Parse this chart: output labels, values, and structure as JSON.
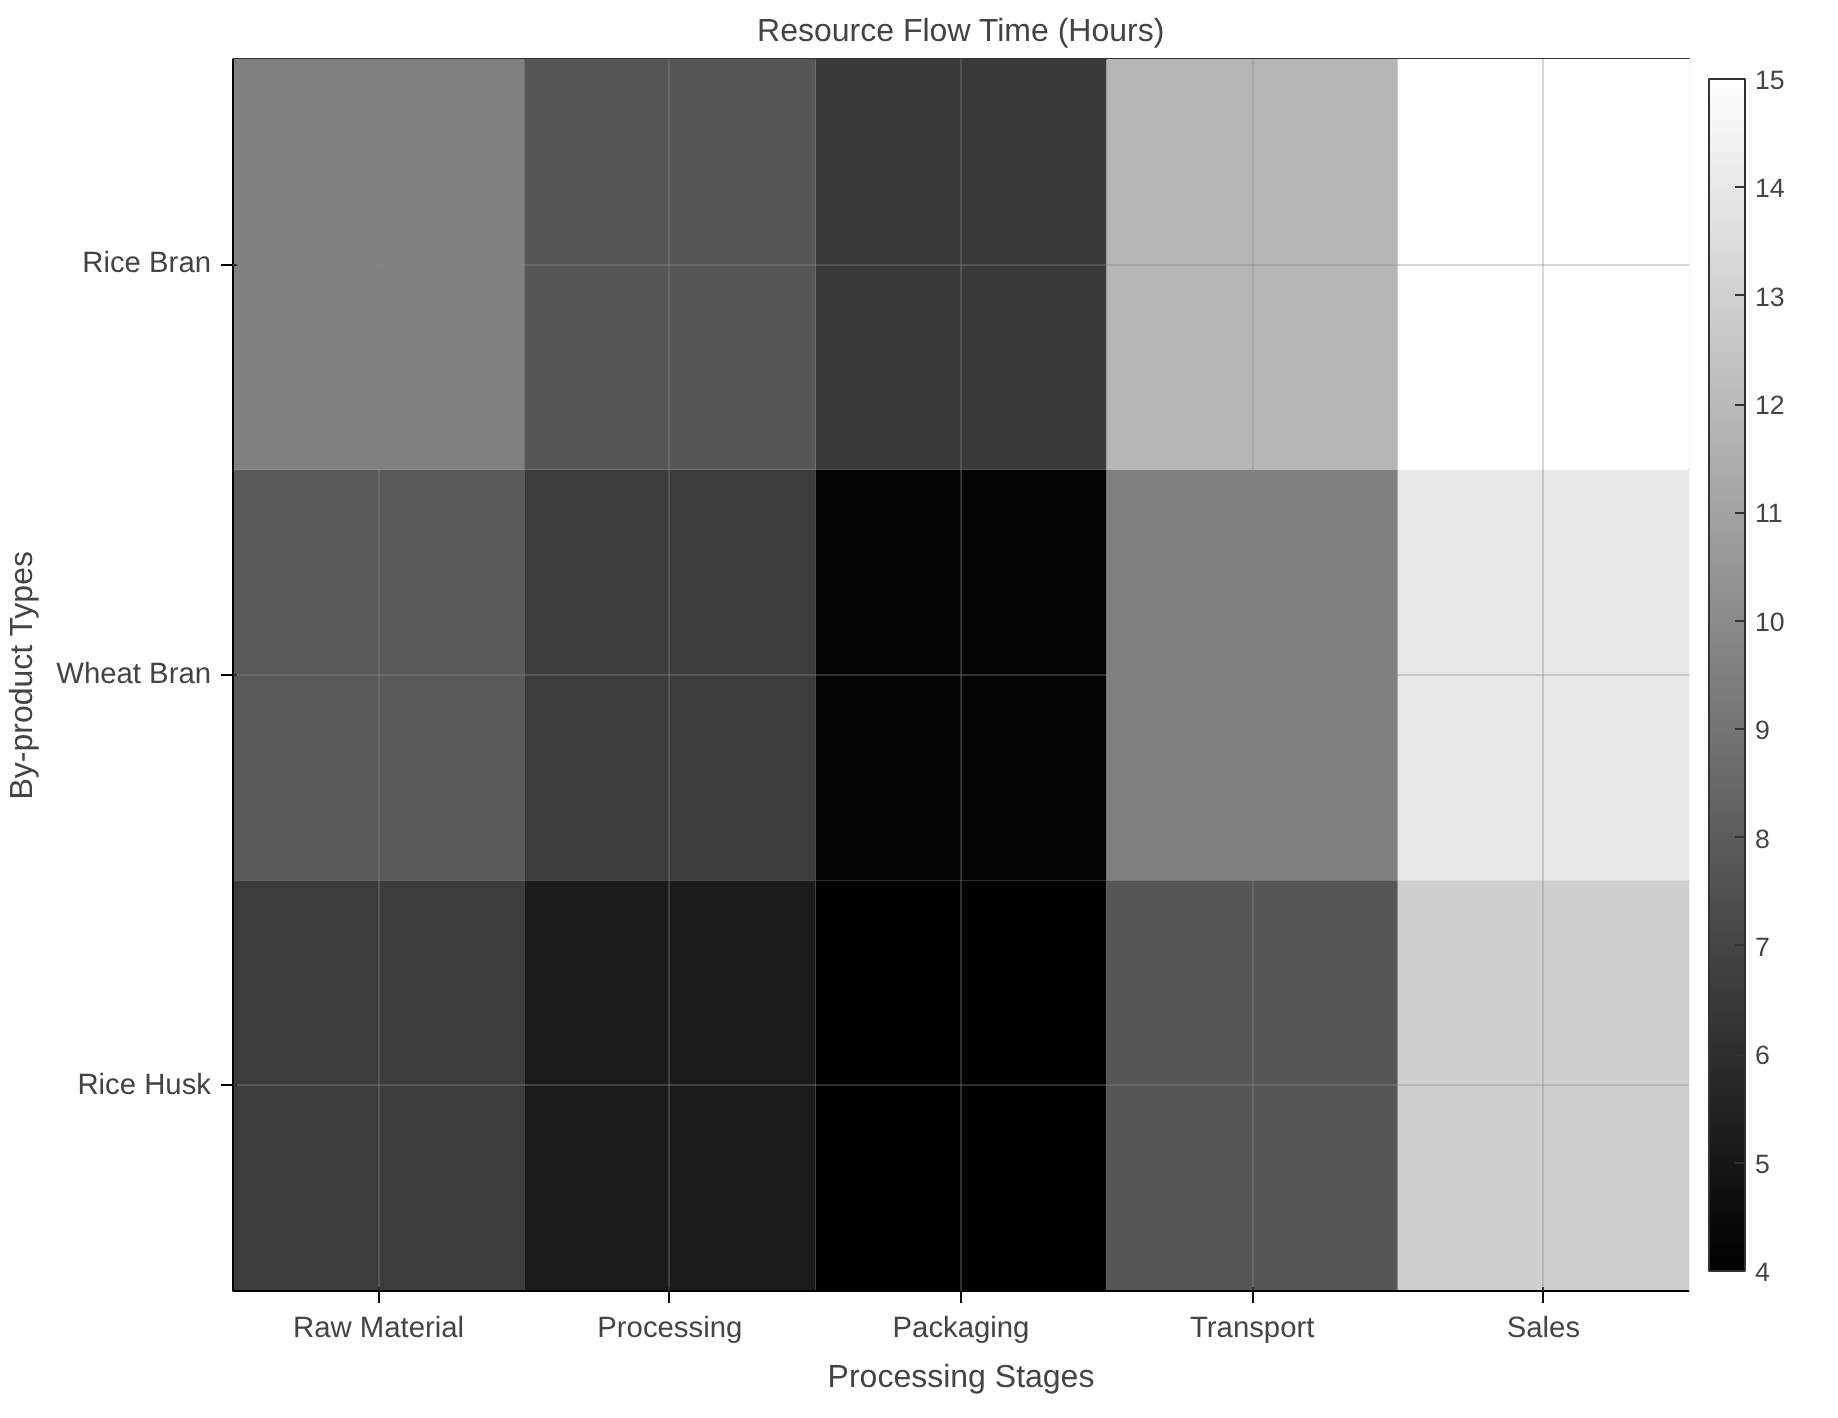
{
  "chart_data": {
    "type": "heatmap",
    "title": "Resource Flow Time (Hours)",
    "xlabel": "Processing Stages",
    "ylabel": "By-product Types",
    "categories": [
      "Raw Material",
      "Processing",
      "Packaging",
      "Transport",
      "Sales"
    ],
    "y_categories": [
      "Rice Bran",
      "Wheat Bran",
      "Rice Husk"
    ],
    "cells": [
      [
        9.5,
        7.7,
        6.5,
        11.8,
        15
      ],
      [
        7.9,
        6.6,
        4.2,
        9.5,
        14
      ],
      [
        6.6,
        5.2,
        4,
        7.7,
        12.9
      ]
    ],
    "clim": [
      4,
      15
    ],
    "cticks": [
      4,
      5,
      6,
      7,
      8,
      9,
      10,
      11,
      12,
      13,
      14,
      15
    ],
    "grid": true
  }
}
